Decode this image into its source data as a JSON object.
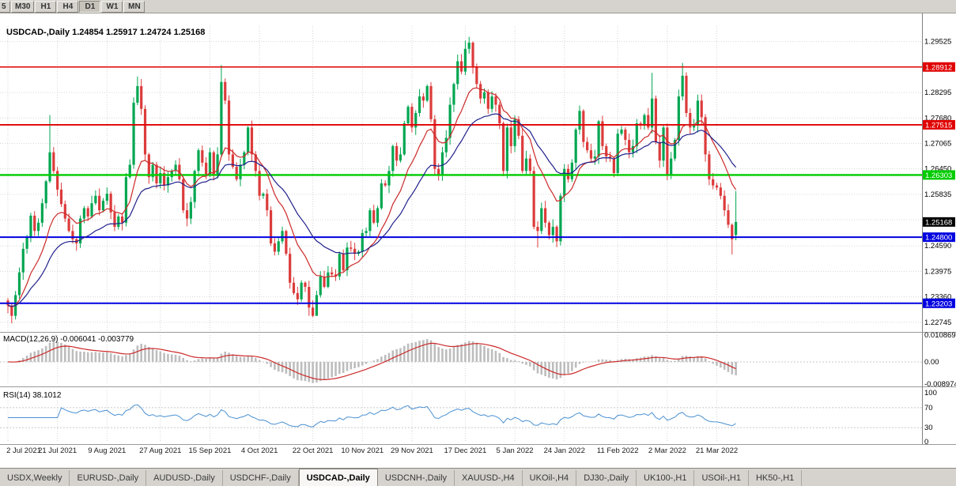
{
  "toolbar": {
    "timeframes": [
      {
        "label": "5",
        "active": false,
        "partial": true
      },
      {
        "label": "M30",
        "active": false,
        "partial": false
      },
      {
        "label": "H1",
        "active": false,
        "partial": false
      },
      {
        "label": "H4",
        "active": false,
        "partial": false
      },
      {
        "label": "D1",
        "active": true,
        "partial": false
      },
      {
        "label": "W1",
        "active": false,
        "partial": false
      },
      {
        "label": "MN",
        "active": false,
        "partial": false
      }
    ]
  },
  "price_chart": {
    "title": "USDCAD-,Daily 1.24854 1.25917 1.24724 1.25168",
    "price_min": 1.2255,
    "price_max": 1.299,
    "up_color": "#00a651",
    "down_color": "#dc3b3b",
    "ma_fast_color": "#cc2929",
    "ma_slow_color": "#20208c",
    "ma_fast_period": 12,
    "ma_slow_period": 26,
    "gridlines": [
      1.29525,
      1.2891,
      1.28295,
      1.2768,
      1.27065,
      1.2645,
      1.25835,
      1.2522,
      1.2459,
      1.23975,
      1.2336,
      1.22745
    ],
    "axis_labels": [
      {
        "text": "1.29525",
        "price": 1.29525
      },
      {
        "text": "1.28295",
        "price": 1.28295
      },
      {
        "text": "1.27680",
        "price": 1.2768
      },
      {
        "text": "1.27065",
        "price": 1.27065
      },
      {
        "text": "1.26450",
        "price": 1.2645
      },
      {
        "text": "1.25835",
        "price": 1.25835
      },
      {
        "text": "1.24590",
        "price": 1.2459
      },
      {
        "text": "1.23975",
        "price": 1.23975
      },
      {
        "text": "1.23360",
        "price": 1.2336
      },
      {
        "text": "1.22745",
        "price": 1.22745
      }
    ],
    "levels": [
      {
        "label": "1.28912",
        "price": 1.28912,
        "color": "#e00000",
        "width": 1.6
      },
      {
        "label": "1.27515",
        "price": 1.27515,
        "color": "#e00000",
        "width": 1.8
      },
      {
        "label": "1.26303",
        "price": 1.26303,
        "color": "#00cc00",
        "width": 2.4
      },
      {
        "label": "1.24800",
        "price": 1.248,
        "color": "#0000e0",
        "width": 2
      },
      {
        "label": "1.23203",
        "price": 1.23203,
        "color": "#0000e0",
        "width": 2
      }
    ],
    "current_price": {
      "label": "1.25168",
      "value": 1.25168,
      "bg": "#000000"
    }
  },
  "x_axis": {
    "labels": [
      {
        "text": "2 Jul 2021",
        "i": 0
      },
      {
        "text": "21 Jul 2021",
        "i": 13
      },
      {
        "text": "9 Aug 2021",
        "i": 26
      },
      {
        "text": "27 Aug 2021",
        "i": 40
      },
      {
        "text": "15 Sep 2021",
        "i": 53
      },
      {
        "text": "4 Oct 2021",
        "i": 66
      },
      {
        "text": "22 Oct 2021",
        "i": 80
      },
      {
        "text": "10 Nov 2021",
        "i": 93
      },
      {
        "text": "29 Nov 2021",
        "i": 106
      },
      {
        "text": "17 Dec 2021",
        "i": 120
      },
      {
        "text": "5 Jan 2022",
        "i": 133
      },
      {
        "text": "24 Jan 2022",
        "i": 146
      },
      {
        "text": "11 Feb 2022",
        "i": 160
      },
      {
        "text": "2 Mar 2022",
        "i": 173
      },
      {
        "text": "21 Mar 2022",
        "i": 186
      }
    ]
  },
  "macd": {
    "label": "MACD(12,26,9) -0.006041 -0.003779",
    "value": -0.006041,
    "signal_value": -0.003779,
    "signal_period": 9,
    "max": 0.010869,
    "min": -0.008974,
    "hist_color": "#bdbdbd",
    "signal_color": "#cc2929",
    "axis_labels": [
      {
        "text": "0.010869",
        "v": 0.010869
      },
      {
        "text": "0.00",
        "v": 0
      },
      {
        "text": "-0.008974",
        "v": -0.008974
      }
    ]
  },
  "rsi": {
    "label": "RSI(14) 38.1012",
    "value": 38.1012,
    "period": 14,
    "levels": [
      70,
      30
    ],
    "line_color": "#4a90d2",
    "axis_labels": [
      {
        "text": "100",
        "v": 100
      },
      {
        "text": "70",
        "v": 70
      },
      {
        "text": "30",
        "v": 30
      },
      {
        "text": "0",
        "v": 0
      }
    ]
  },
  "tabs": [
    {
      "label": "USDX,Weekly",
      "active": false
    },
    {
      "label": "EURUSD-,Daily",
      "active": false
    },
    {
      "label": "AUDUSD-,Daily",
      "active": false
    },
    {
      "label": "USDCHF-,Daily",
      "active": false
    },
    {
      "label": "USDCAD-,Daily",
      "active": true
    },
    {
      "label": "USDCNH-,Daily",
      "active": false
    },
    {
      "label": "XAUUSD-,H4",
      "active": false
    },
    {
      "label": "UKOil-,H4",
      "active": false
    },
    {
      "label": "DJ30-,Daily",
      "active": false
    },
    {
      "label": "UK100-,H1",
      "active": false
    },
    {
      "label": "USOil-,H1",
      "active": false
    },
    {
      "label": "HK50-,H1",
      "active": false
    }
  ],
  "chart_data": {
    "type": "candlestick",
    "symbol": "USDCAD",
    "timeframe": "Daily",
    "current_bar": {
      "open": 1.24854,
      "high": 1.25917,
      "low": 1.24724,
      "close": 1.25168
    },
    "closes": [
      1.2315,
      1.229,
      1.234,
      1.2395,
      1.2452,
      1.248,
      1.2532,
      1.2495,
      1.2515,
      1.2562,
      1.2615,
      1.2685,
      1.264,
      1.2595,
      1.256,
      1.2525,
      1.2495,
      1.2475,
      1.2465,
      1.2525,
      1.255,
      1.253,
      1.2562,
      1.258,
      1.2545,
      1.2568,
      1.2585,
      1.254,
      1.2505,
      1.253,
      1.2515,
      1.2625,
      1.2655,
      1.2805,
      1.2845,
      1.279,
      1.268,
      1.2625,
      1.2655,
      1.261,
      1.2635,
      1.2605,
      1.2625,
      1.264,
      1.2655,
      1.262,
      1.2545,
      1.2525,
      1.2565,
      1.264,
      1.269,
      1.266,
      1.263,
      1.2685,
      1.263,
      1.268,
      1.2855,
      1.281,
      1.268,
      1.265,
      1.262,
      1.2655,
      1.2685,
      1.2745,
      1.268,
      1.264,
      1.258,
      1.2585,
      1.2545,
      1.2465,
      1.2445,
      1.247,
      1.2495,
      1.244,
      1.237,
      1.2345,
      1.233,
      1.237,
      1.236,
      1.231,
      1.229,
      1.234,
      1.2385,
      1.236,
      1.2395,
      1.239,
      1.2385,
      1.244,
      1.24,
      1.2455,
      1.2452,
      1.244,
      1.2445,
      1.249,
      1.2495,
      1.2545,
      1.2515,
      1.255,
      1.261,
      1.2605,
      1.264,
      1.27,
      1.2665,
      1.268,
      1.2755,
      1.2795,
      1.2745,
      1.278,
      1.282,
      1.281,
      1.2845,
      1.2765,
      1.2645,
      1.263,
      1.2685,
      1.272,
      1.28,
      1.285,
      1.2905,
      1.288,
      1.2935,
      1.295,
      1.289,
      1.285,
      1.2815,
      1.283,
      1.279,
      1.282,
      1.28,
      1.2755,
      1.264,
      1.2745,
      1.27,
      1.2765,
      1.2725,
      1.264,
      1.267,
      1.264,
      1.2505,
      1.2495,
      1.255,
      1.2515,
      1.2485,
      1.2505,
      1.247,
      1.258,
      1.2645,
      1.262,
      1.266,
      1.274,
      1.2785,
      1.271,
      1.269,
      1.267,
      1.2675,
      1.276,
      1.27,
      1.2675,
      1.267,
      1.2635,
      1.273,
      1.274,
      1.2715,
      1.2685,
      1.27,
      1.2755,
      1.275,
      1.2775,
      1.2745,
      1.2815,
      1.271,
      1.2665,
      1.2745,
      1.263,
      1.267,
      1.2715,
      1.282,
      1.287,
      1.278,
      1.2745,
      1.275,
      1.281,
      1.277,
      1.268,
      1.262,
      1.2605,
      1.26,
      1.258,
      1.2545,
      1.251,
      1.2475,
      1.25168
    ],
    "overrides": {
      "1": {
        "l": 1.2272
      },
      "11": {
        "h": 1.2775
      },
      "34": {
        "h": 1.2868
      },
      "56": {
        "h": 1.2896
      },
      "79": {
        "l": 1.229
      },
      "80": {
        "l": 1.2287
      },
      "81": {
        "l": 1.2295
      },
      "120": {
        "h": 1.2955
      },
      "121": {
        "h": 1.2964
      },
      "139": {
        "l": 1.2455
      },
      "144": {
        "l": 1.2456
      },
      "169": {
        "h": 1.2877
      },
      "177": {
        "h": 1.2901
      },
      "190": {
        "l": 1.2438
      },
      "191": {
        "o": 1.24854,
        "h": 1.25917,
        "l": 1.24724,
        "c": 1.25168
      }
    }
  }
}
